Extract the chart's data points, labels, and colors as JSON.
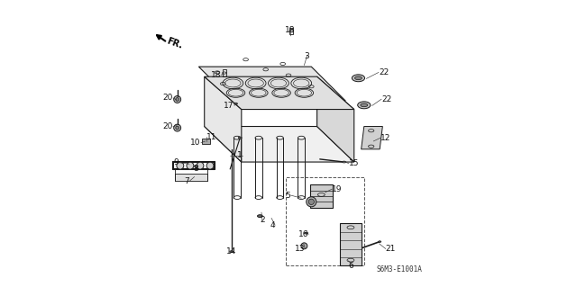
{
  "bg_color": "#ffffff",
  "diagram_code": "S6M3-E1001A",
  "fr_label": "FR.",
  "line_color": "#1a1a1a",
  "head_top_color": "#f0f0f0",
  "head_front_color": "#e8e8e8",
  "head_right_color": "#d8d8d8",
  "head_bottom_color": "#e0e0e0",
  "gasket_color": "#e4e4e4",
  "vtec_bracket_color": "#d0d0d0",
  "spool_color": "#cccccc",
  "cam_color": "#d0d0d0",
  "part_gray": "#b0b0b0",
  "part_dark": "#888888"
}
